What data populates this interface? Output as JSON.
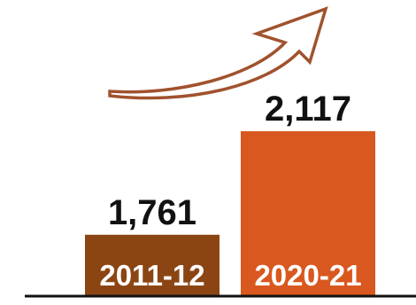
{
  "chart_data": {
    "type": "bar",
    "categories": [
      "2011-12",
      "2020-21"
    ],
    "values": [
      1761,
      2117
    ],
    "value_labels": [
      "1,761",
      "2,117"
    ],
    "bar_colors": [
      "#8b4513",
      "#d9581f"
    ],
    "arrow_color": "#a0522d",
    "title": "",
    "xlabel": "",
    "ylabel": "",
    "ylim": [
      1550,
      2117
    ],
    "grid": false,
    "legend": "none",
    "annotation": "upward-trend-arrow"
  }
}
